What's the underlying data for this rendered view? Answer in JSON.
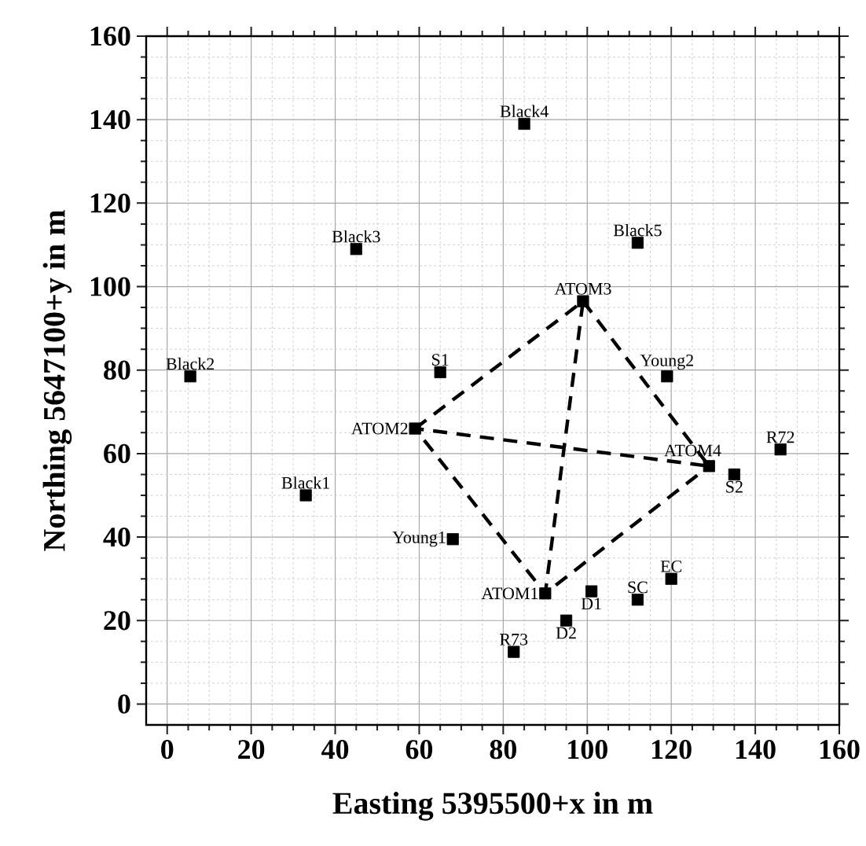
{
  "chart_data": {
    "type": "scatter",
    "xlabel": "Easting 5395500+x in m",
    "ylabel": "Northing 5647100+y in m",
    "xlim": [
      -5,
      160
    ],
    "ylim": [
      -5,
      160
    ],
    "xticks": [
      0,
      20,
      40,
      60,
      80,
      100,
      120,
      140,
      160
    ],
    "yticks": [
      0,
      20,
      40,
      60,
      80,
      100,
      120,
      140,
      160
    ],
    "grid": true,
    "series": [
      {
        "color": "#000000",
        "marker": "square",
        "x": [
          5.5,
          33,
          45,
          85,
          112,
          99,
          65,
          119,
          59,
          129,
          135,
          146,
          68,
          90,
          101,
          95,
          112,
          120,
          82.5
        ],
        "values": [
          78.5,
          50,
          109,
          139,
          110.5,
          96.5,
          79.5,
          78.5,
          66,
          57,
          55,
          61,
          39.5,
          26.5,
          27,
          20,
          25,
          30,
          12.5
        ]
      },
      {
        "type": "line",
        "color": "#000000",
        "line_style": "dashed",
        "x": [
          59,
          99,
          90,
          129
        ],
        "values": [
          66,
          96.5,
          26.5,
          57
        ]
      },
      {
        "type": "line",
        "color": "#000000",
        "line_style": "dashed",
        "x": [
          99,
          129,
          59,
          90
        ],
        "values": [
          96.5,
          57,
          66,
          26.5
        ]
      }
    ],
    "annotations": [
      {
        "text": "Black2",
        "x": 5.5,
        "y": 78.5
      },
      {
        "text": "Black1",
        "x": 33,
        "y": 50
      },
      {
        "text": "Black3",
        "x": 45,
        "y": 109
      },
      {
        "text": "Black4",
        "x": 85,
        "y": 139
      },
      {
        "text": "Black5",
        "x": 112,
        "y": 110.5
      },
      {
        "text": "ATOM3",
        "x": 99,
        "y": 96.5
      },
      {
        "text": "S1",
        "x": 65,
        "y": 79.5
      },
      {
        "text": "Young2",
        "x": 119,
        "y": 78.5
      },
      {
        "text": "ATOM2",
        "x": 59,
        "y": 66
      },
      {
        "text": "ATOM4",
        "x": 129,
        "y": 57
      },
      {
        "text": "S2",
        "x": 135,
        "y": 55
      },
      {
        "text": "R72",
        "x": 146,
        "y": 61
      },
      {
        "text": "Young1",
        "x": 68,
        "y": 39.5
      },
      {
        "text": "ATOM1",
        "x": 90,
        "y": 26.5
      },
      {
        "text": "D1",
        "x": 101,
        "y": 27
      },
      {
        "text": "D2",
        "x": 95,
        "y": 20
      },
      {
        "text": "SC",
        "x": 112,
        "y": 25
      },
      {
        "text": "EC",
        "x": 120,
        "y": 30
      },
      {
        "text": "R73",
        "x": 82.5,
        "y": 12.5
      }
    ]
  }
}
